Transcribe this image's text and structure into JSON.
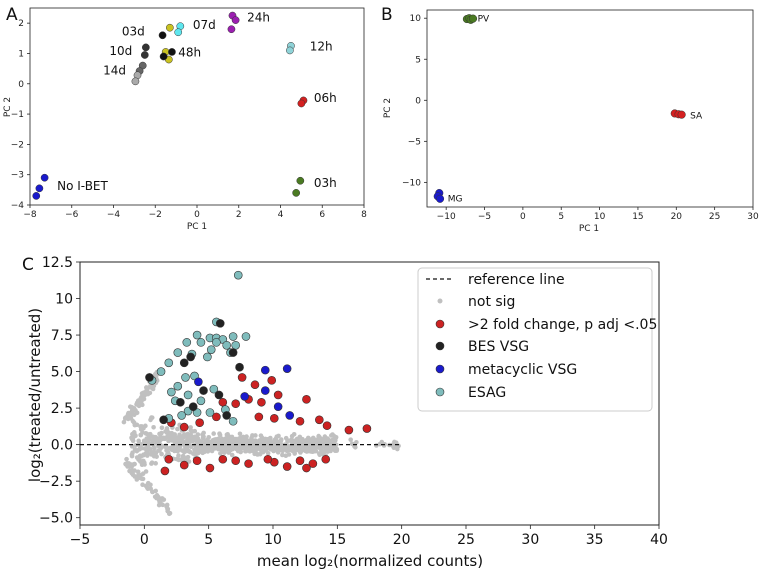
{
  "chart_data": [
    {
      "panel": "A",
      "type": "scatter",
      "xlabel": "PC 1",
      "ylabel": "PC 2",
      "xlim": [
        -8,
        8
      ],
      "ylim": [
        -4,
        2.5
      ],
      "xticks": [
        -8,
        -6,
        -4,
        -2,
        0,
        2,
        4,
        6,
        8
      ],
      "yticks": [
        -4,
        -3,
        -2,
        -1,
        0,
        1,
        2
      ],
      "groups": [
        {
          "label": "No I-BET",
          "color": "#1a1acc",
          "points": [
            [
              -7.3,
              -3.1
            ],
            [
              -7.55,
              -3.45
            ],
            [
              -7.7,
              -3.7
            ]
          ]
        },
        {
          "label": "03h",
          "color": "#4a7a22",
          "points": [
            [
              4.95,
              -3.2
            ],
            [
              4.75,
              -3.6
            ]
          ]
        },
        {
          "label": "06h",
          "color": "#d42020",
          "points": [
            [
              5.1,
              -0.55
            ],
            [
              5.0,
              -0.65
            ]
          ]
        },
        {
          "label": "12h",
          "color": "#8fd3d8",
          "points": [
            [
              4.5,
              1.25
            ],
            [
              4.45,
              1.1
            ]
          ]
        },
        {
          "label": "24h",
          "color": "#9b1fb0",
          "points": [
            [
              1.7,
              2.25
            ],
            [
              1.85,
              2.1
            ],
            [
              1.65,
              1.8
            ]
          ]
        },
        {
          "label": "07d",
          "color": "#5ee6ee",
          "points": [
            [
              -0.8,
              1.9
            ],
            [
              -0.9,
              1.7
            ]
          ]
        },
        {
          "label": "03d",
          "color": "#c9c221",
          "points": [
            [
              -1.3,
              1.85
            ]
          ]
        },
        {
          "label": "48h",
          "color": "#c9c221",
          "points": [
            [
              -1.5,
              1.05
            ],
            [
              -1.35,
              0.8
            ]
          ]
        },
        {
          "label": "48h",
          "color": "#111111",
          "points": [
            [
              -1.2,
              1.05
            ],
            [
              -1.6,
              0.9
            ]
          ]
        },
        {
          "label": "03d",
          "color": "#111111",
          "points": [
            [
              -1.65,
              1.6
            ]
          ]
        },
        {
          "label": "10d",
          "color": "#333333",
          "points": [
            [
              -2.45,
              1.2
            ],
            [
              -2.5,
              0.95
            ]
          ]
        },
        {
          "label": "14d",
          "color": "#666666",
          "points": [
            [
              -2.6,
              0.6
            ],
            [
              -2.75,
              0.42
            ]
          ]
        },
        {
          "label": "14d",
          "color": "#aaaaaa",
          "points": [
            [
              -2.85,
              0.28
            ],
            [
              -2.95,
              0.08
            ]
          ]
        }
      ],
      "annotations": [
        {
          "text": "24h",
          "x": 2.4,
          "y": 2.05
        },
        {
          "text": "07d",
          "x": -0.2,
          "y": 1.8
        },
        {
          "text": "03d",
          "x": -3.6,
          "y": 1.6
        },
        {
          "text": "10d",
          "x": -4.2,
          "y": 0.95
        },
        {
          "text": "48h",
          "x": -0.9,
          "y": 0.9
        },
        {
          "text": "14d",
          "x": -4.5,
          "y": 0.3
        },
        {
          "text": "12h",
          "x": 5.4,
          "y": 1.1
        },
        {
          "text": "06h",
          "x": 5.6,
          "y": -0.6
        },
        {
          "text": "No I-BET",
          "x": -6.7,
          "y": -3.5
        },
        {
          "text": "03h",
          "x": 5.6,
          "y": -3.4
        }
      ]
    },
    {
      "panel": "B",
      "type": "scatter",
      "xlabel": "PC 1",
      "ylabel": "PC 2",
      "xlim": [
        -12.5,
        30
      ],
      "ylim": [
        -13,
        11
      ],
      "xticks": [
        -10,
        -5,
        0,
        5,
        10,
        15,
        20,
        25,
        30
      ],
      "yticks": [
        -10,
        -5,
        0,
        5,
        10
      ],
      "groups": [
        {
          "label": "PV",
          "color": "#4a7a22",
          "points": [
            [
              -7.3,
              9.9
            ],
            [
              -7.0,
              10.0
            ],
            [
              -6.8,
              9.8
            ],
            [
              -6.5,
              9.95
            ]
          ]
        },
        {
          "label": "SA",
          "color": "#d42020",
          "points": [
            [
              19.8,
              -1.6
            ],
            [
              20.3,
              -1.7
            ],
            [
              20.7,
              -1.75
            ]
          ]
        },
        {
          "label": "MG",
          "color": "#1a1acc",
          "points": [
            [
              -10.9,
              -11.3
            ],
            [
              -11.1,
              -11.7
            ],
            [
              -10.8,
              -12.0
            ]
          ]
        }
      ],
      "annotations": [
        {
          "text": "PV",
          "x": -5.9,
          "y": 9.6
        },
        {
          "text": "SA",
          "x": 21.8,
          "y": -2.2
        },
        {
          "text": "MG",
          "x": -9.8,
          "y": -12.3
        }
      ]
    },
    {
      "panel": "C",
      "type": "scatter",
      "xlabel": "mean log₂(normalized counts)",
      "ylabel": "log₂(treated/untreated)",
      "xlim": [
        -5,
        40
      ],
      "ylim": [
        -5.5,
        12.5
      ],
      "xticks": [
        -5,
        0,
        5,
        10,
        15,
        20,
        25,
        30,
        35,
        40
      ],
      "yticks": [
        -5.0,
        -2.5,
        0.0,
        2.5,
        5.0,
        7.5,
        10.0,
        12.5
      ],
      "legend_position": "top-right",
      "legend": [
        "reference line",
        "not sig",
        ">2 fold change, p adj <.05",
        "BES VSG",
        "metacyclic VSG",
        "ESAG"
      ],
      "reference_line_y": 0,
      "series": [
        {
          "name": "ESAG",
          "color": "#7fbcbc",
          "points": [
            [
              7.3,
              11.6
            ],
            [
              5.6,
              8.4
            ],
            [
              5.1,
              7.3
            ],
            [
              5.6,
              7.3
            ],
            [
              6.1,
              7.2
            ],
            [
              5.6,
              7.0
            ],
            [
              6.9,
              7.4
            ],
            [
              7.9,
              7.4
            ],
            [
              6.4,
              6.8
            ],
            [
              7.1,
              6.8
            ],
            [
              5.2,
              6.5
            ],
            [
              6.7,
              6.3
            ],
            [
              4.1,
              7.5
            ],
            [
              3.3,
              7.0
            ],
            [
              2.6,
              6.3
            ],
            [
              1.9,
              5.6
            ],
            [
              1.3,
              5.0
            ],
            [
              0.6,
              4.4
            ],
            [
              4.4,
              7.0
            ],
            [
              3.7,
              6.2
            ],
            [
              4.9,
              6.0
            ],
            [
              3.9,
              4.7
            ],
            [
              3.4,
              3.4
            ],
            [
              4.4,
              3.0
            ],
            [
              5.4,
              3.8
            ],
            [
              2.4,
              3.0
            ],
            [
              3.4,
              2.3
            ],
            [
              5.1,
              2.2
            ],
            [
              6.3,
              2.4
            ],
            [
              4.1,
              2.2
            ],
            [
              2.9,
              2.0
            ],
            [
              1.9,
              1.8
            ],
            [
              6.9,
              1.6
            ],
            [
              2.1,
              3.6
            ],
            [
              2.6,
              4.0
            ],
            [
              3.2,
              4.6
            ]
          ]
        },
        {
          "name": "BES VSG",
          "color": "#222222",
          "points": [
            [
              5.9,
              8.3
            ],
            [
              6.9,
              6.3
            ],
            [
              7.4,
              5.3
            ],
            [
              3.1,
              5.6
            ],
            [
              3.6,
              6.0
            ],
            [
              0.4,
              4.6
            ],
            [
              4.6,
              3.7
            ],
            [
              5.8,
              3.4
            ],
            [
              2.8,
              2.9
            ],
            [
              6.4,
              2.0
            ],
            [
              1.5,
              1.7
            ],
            [
              3.8,
              2.6
            ]
          ]
        },
        {
          "name": "metacyclic VSG",
          "color": "#1a1acc",
          "points": [
            [
              9.4,
              5.1
            ],
            [
              11.1,
              5.2
            ],
            [
              4.2,
              4.3
            ],
            [
              9.4,
              3.7
            ],
            [
              7.8,
              3.3
            ],
            [
              10.4,
              2.6
            ],
            [
              11.3,
              2.0
            ]
          ]
        },
        {
          "name": ">2 fold change, p adj <.05",
          "color": "#cc2222",
          "points": [
            [
              17.3,
              1.1
            ],
            [
              15.9,
              1.0
            ],
            [
              9.9,
              4.4
            ],
            [
              8.6,
              4.1
            ],
            [
              7.6,
              4.6
            ],
            [
              10.4,
              3.4
            ],
            [
              8.1,
              3.1
            ],
            [
              12.6,
              3.1
            ],
            [
              6.1,
              2.9
            ],
            [
              7.1,
              2.8
            ],
            [
              9.1,
              2.9
            ],
            [
              10.1,
              1.8
            ],
            [
              12.1,
              1.6
            ],
            [
              13.6,
              1.7
            ],
            [
              14.2,
              1.3
            ],
            [
              4.3,
              1.5
            ],
            [
              5.6,
              1.9
            ],
            [
              3.1,
              1.2
            ],
            [
              2.1,
              1.5
            ],
            [
              8.9,
              1.9
            ],
            [
              1.6,
              -1.8
            ],
            [
              1.9,
              -1.0
            ],
            [
              4.1,
              -1.1
            ],
            [
              6.1,
              -1.0
            ],
            [
              8.1,
              -1.3
            ],
            [
              10.1,
              -1.2
            ],
            [
              12.1,
              -1.1
            ],
            [
              13.1,
              -1.3
            ],
            [
              14.1,
              -1.0
            ],
            [
              11.1,
              -1.5
            ],
            [
              5.1,
              -1.6
            ],
            [
              3.1,
              -1.4
            ],
            [
              7.1,
              -1.1
            ],
            [
              9.6,
              -1.0
            ],
            [
              12.6,
              -1.6
            ]
          ]
        }
      ]
    }
  ]
}
